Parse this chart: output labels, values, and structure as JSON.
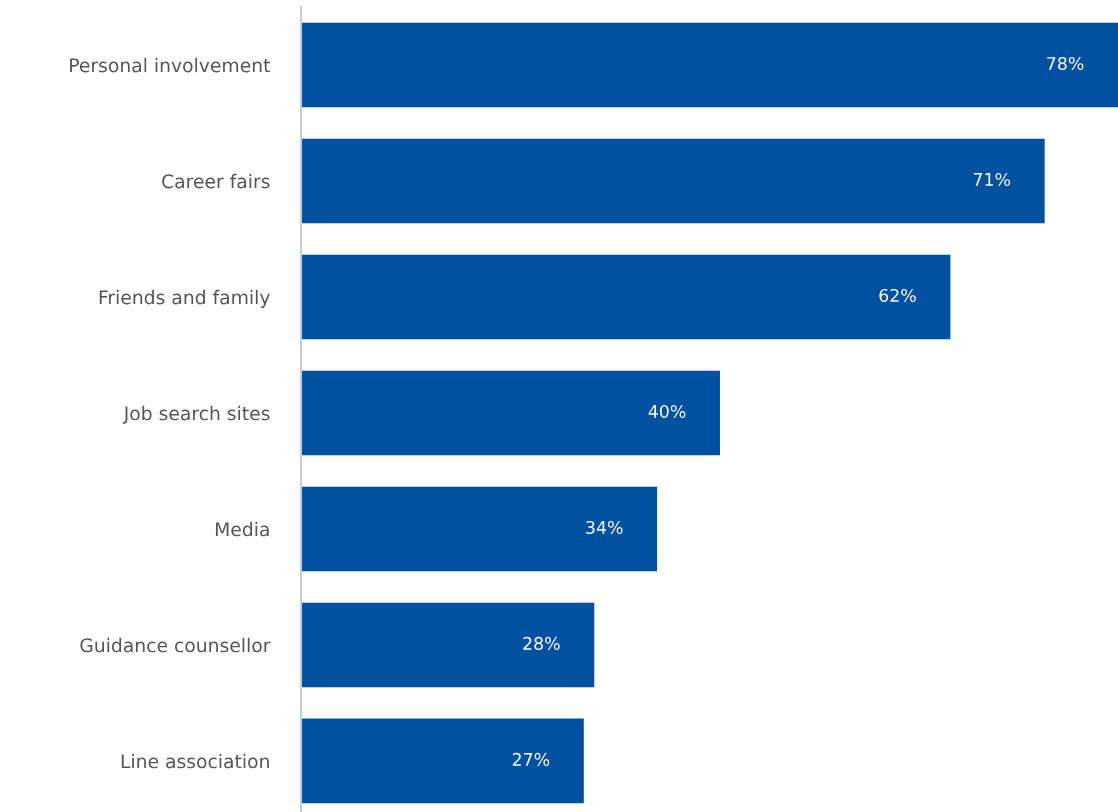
{
  "chart_data": {
    "type": "bar",
    "orientation": "horizontal",
    "categories": [
      "Personal involvement",
      "Career fairs",
      "Friends and family",
      "Job search sites",
      "Media",
      "Guidance counsellor",
      "Line association"
    ],
    "values": [
      78,
      71,
      62,
      40,
      34,
      28,
      27
    ],
    "value_labels": [
      "78%",
      "71%",
      "62%",
      "40%",
      "34%",
      "28%",
      "27%"
    ],
    "color": "#0052a0",
    "grid": false,
    "legend": false
  }
}
